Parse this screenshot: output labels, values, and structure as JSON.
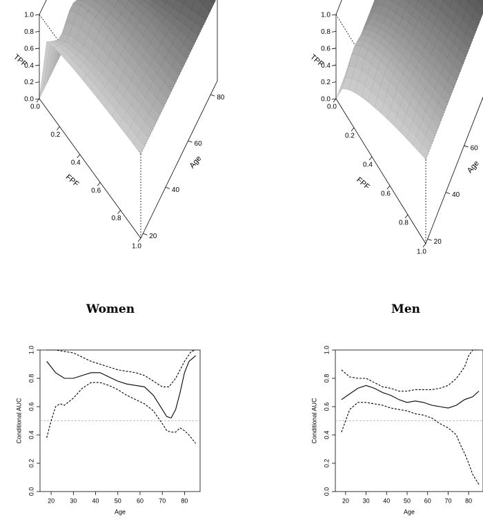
{
  "chart_data": [
    {
      "type": "surface",
      "title": "Women",
      "xlabel": "FPF",
      "ylabel": "Age",
      "zlabel": "TPF",
      "xlim": [
        0,
        1
      ],
      "ylim": [
        18,
        86
      ],
      "zlim": [
        0,
        1
      ],
      "x_ticks": [
        "0.0",
        "0.2",
        "0.4",
        "0.6",
        "0.8",
        "1.0"
      ],
      "y_ticks": [
        "20",
        "40",
        "60",
        "80"
      ],
      "z_ticks": [
        "0.0",
        "0.2",
        "0.4",
        "0.6",
        "0.8",
        "1.0"
      ],
      "age": [
        18,
        30,
        40,
        50,
        60,
        70,
        75,
        80,
        86
      ],
      "auc": [
        0.92,
        0.79,
        0.85,
        0.78,
        0.74,
        0.58,
        0.53,
        0.76,
        0.96
      ]
    },
    {
      "type": "surface",
      "title": "Men",
      "xlabel": "FPF",
      "ylabel": "Age",
      "zlabel": "TPF",
      "xlim": [
        0,
        1
      ],
      "ylim": [
        18,
        86
      ],
      "zlim": [
        0,
        1
      ],
      "x_ticks": [
        "0.0",
        "0.2",
        "0.4",
        "0.6",
        "0.8",
        "1.0"
      ],
      "y_ticks": [
        "20",
        "40",
        "60",
        "80"
      ],
      "z_ticks": [
        "0.0",
        "0.2",
        "0.4",
        "0.6",
        "0.8",
        "1.0"
      ],
      "age": [
        18,
        30,
        40,
        50,
        60,
        70,
        80,
        86
      ],
      "auc": [
        0.65,
        0.74,
        0.69,
        0.63,
        0.62,
        0.59,
        0.65,
        0.71
      ]
    },
    {
      "type": "line",
      "title": "Women",
      "xlabel": "Age",
      "ylabel": "Conditional AUC",
      "xlim": [
        15,
        87
      ],
      "ylim": [
        0,
        1
      ],
      "x_ticks": [
        20,
        30,
        40,
        50,
        60,
        70,
        80
      ],
      "y_ticks": [
        "0.0",
        "0.2",
        "0.4",
        "0.6",
        "0.8",
        "1.0"
      ],
      "reference_line": 0.5,
      "series": [
        {
          "style": "solid",
          "x": [
            18,
            22,
            26,
            30,
            34,
            38,
            42,
            46,
            50,
            54,
            58,
            62,
            66,
            70,
            72,
            74,
            76,
            78,
            80,
            82,
            85
          ],
          "y": [
            0.92,
            0.84,
            0.8,
            0.8,
            0.82,
            0.84,
            0.84,
            0.81,
            0.78,
            0.76,
            0.75,
            0.74,
            0.68,
            0.58,
            0.53,
            0.52,
            0.58,
            0.7,
            0.84,
            0.92,
            0.96
          ]
        },
        {
          "style": "dashed",
          "x": [
            18,
            22,
            26,
            30,
            34,
            38,
            42,
            46,
            50,
            54,
            58,
            62,
            66,
            70,
            73,
            76,
            80,
            83,
            85
          ],
          "y": [
            1.0,
            1.0,
            0.99,
            0.98,
            0.95,
            0.92,
            0.9,
            0.88,
            0.86,
            0.85,
            0.84,
            0.82,
            0.78,
            0.74,
            0.74,
            0.8,
            0.92,
            0.99,
            1.0
          ]
        },
        {
          "style": "dashed",
          "x": [
            18,
            20,
            22,
            24,
            26,
            30,
            34,
            38,
            42,
            46,
            50,
            54,
            58,
            62,
            66,
            70,
            72,
            74,
            76,
            78,
            80,
            82,
            85
          ],
          "y": [
            0.38,
            0.5,
            0.6,
            0.62,
            0.61,
            0.66,
            0.73,
            0.77,
            0.77,
            0.75,
            0.72,
            0.68,
            0.65,
            0.62,
            0.57,
            0.48,
            0.43,
            0.42,
            0.42,
            0.45,
            0.43,
            0.4,
            0.34
          ]
        }
      ]
    },
    {
      "type": "line",
      "title": "Men",
      "xlabel": "Age",
      "ylabel": "Conditional AUC",
      "xlim": [
        15,
        87
      ],
      "ylim": [
        0,
        1
      ],
      "x_ticks": [
        20,
        30,
        40,
        50,
        60,
        70,
        80
      ],
      "y_ticks": [
        "0.0",
        "0.2",
        "0.4",
        "0.6",
        "0.8",
        "1.0"
      ],
      "reference_line": 0.5,
      "series": [
        {
          "style": "solid",
          "x": [
            18,
            22,
            26,
            30,
            34,
            38,
            42,
            46,
            50,
            54,
            58,
            62,
            66,
            70,
            74,
            78,
            82,
            85
          ],
          "y": [
            0.65,
            0.69,
            0.73,
            0.75,
            0.73,
            0.7,
            0.68,
            0.65,
            0.63,
            0.64,
            0.63,
            0.61,
            0.6,
            0.59,
            0.61,
            0.65,
            0.67,
            0.71
          ]
        },
        {
          "style": "dashed",
          "x": [
            18,
            22,
            26,
            30,
            34,
            38,
            42,
            46,
            50,
            54,
            58,
            62,
            66,
            70,
            74,
            78,
            80,
            82,
            85
          ],
          "y": [
            0.86,
            0.81,
            0.8,
            0.8,
            0.77,
            0.74,
            0.73,
            0.71,
            0.71,
            0.72,
            0.72,
            0.72,
            0.73,
            0.75,
            0.8,
            0.88,
            0.96,
            1.0,
            1.0
          ]
        },
        {
          "style": "dashed",
          "x": [
            18,
            22,
            26,
            30,
            34,
            38,
            42,
            46,
            50,
            54,
            58,
            62,
            66,
            70,
            74,
            76,
            78,
            80,
            82,
            85
          ],
          "y": [
            0.42,
            0.58,
            0.63,
            0.63,
            0.62,
            0.61,
            0.59,
            0.58,
            0.57,
            0.55,
            0.54,
            0.52,
            0.48,
            0.45,
            0.4,
            0.33,
            0.27,
            0.2,
            0.12,
            0.05
          ]
        }
      ]
    }
  ]
}
